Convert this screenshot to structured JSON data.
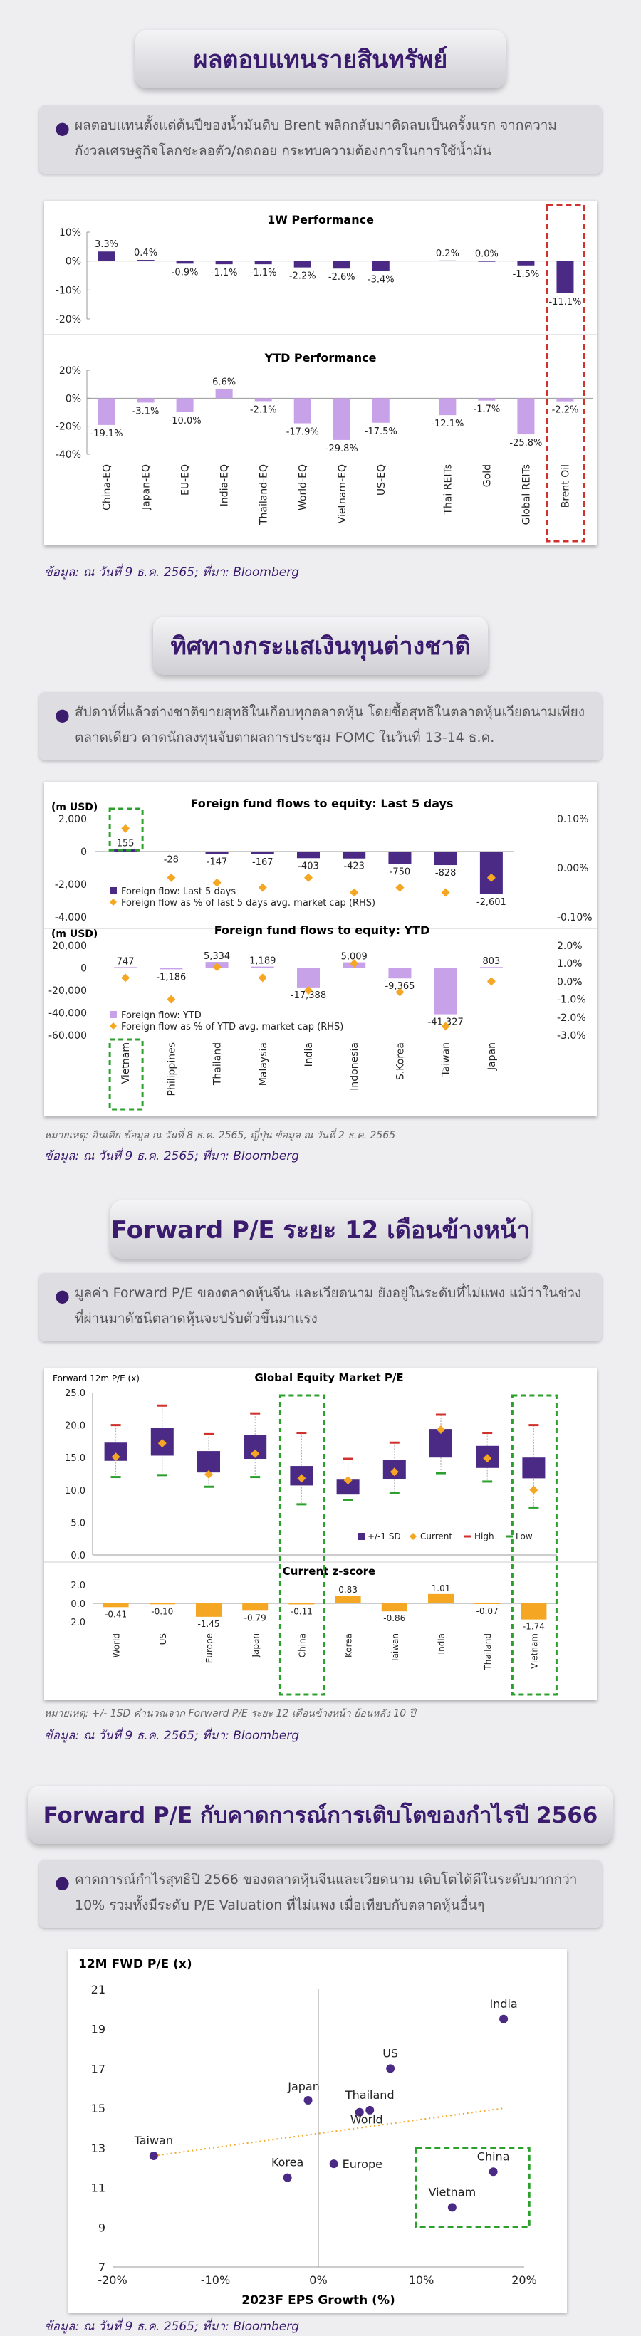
{
  "sections": {
    "s1": {
      "title": "ผลตอบแทนรายสินทรัพย์",
      "bullet": "ผลตอบแทนตั้งแต่ต้นปีของน้ำมันดิบ Brent พลิกกลับมาติดลบเป็นครั้งแรก จากความกังวลเศรษฐกิจโลกชะลอตัว/ถดถอย กระทบความต้องการในการใช้น้ำมัน",
      "source": "ข้อมูล: ณ วันที่ 9 ธ.ค. 2565; ที่มา: Bloomberg"
    },
    "s2": {
      "title": "ทิศทางกระแสเงินทุนต่างชาติ",
      "bullet": "สัปดาห์ที่แล้วต่างชาติขายสุทธิในเกือบทุกตลาดหุ้น โดยซื้อสุทธิในตลาดหุ้นเวียดนามเพียงตลาดเดียว คาดนักลงทุนจับตาผลการประชุม FOMC ในวันที่ 13-14 ธ.ค.",
      "note": "หมายเหตุ: อินเดีย ข้อมูล ณ วันที่ 8 ธ.ค. 2565, ญี่ปุ่น ข้อมูล ณ วันที่ 2 ธ.ค. 2565",
      "source": "ข้อมูล: ณ วันที่ 9 ธ.ค. 2565; ที่มา: Bloomberg"
    },
    "s3": {
      "title": "Forward P/E ระยะ 12 เดือนข้างหน้า",
      "bullet": "มูลค่า Forward P/E ของตลาดหุ้นจีน และเวียดนาม ยังอยู่ในระดับที่ไม่แพง แม้ว่าในช่วงที่ผ่านมาดัชนีตลาดหุ้นจะปรับตัวขึ้นมาแรง",
      "note": "หมายเหตุ: +/- 1SD คำนวณจาก Forward P/E ระยะ 12 เดือนข้างหน้า ย้อนหลัง 10 ปี",
      "source": "ข้อมูล: ณ วันที่ 9 ธ.ค. 2565; ที่มา: Bloomberg"
    },
    "s4": {
      "title": "Forward P/E กับคาดการณ์การเติบโตของกำไรปี 2566",
      "bullet": "คาดการณ์กำไรสุทธิปี 2566 ของตลาดหุ้นจีนและเวียดนาม เติบโตได้ดีในระดับมากกว่า 10% รวมทั้งมีระดับ P/E Valuation ที่ไม่แพง เมื่อเทียบกับตลาดหุ้นอื่นๆ",
      "source": "ข้อมูล: ณ วันที่ 9 ธ.ค. 2565; ที่มา: Bloomberg"
    }
  },
  "colors": {
    "purple": "#4b2a85",
    "lavender": "#c8a2e8",
    "orange": "#f5a623",
    "red": "#d0312d",
    "green": "#2ca02c"
  },
  "chart_data": [
    {
      "type": "bar",
      "title": "1W Performance",
      "categories": [
        "China-EQ",
        "Japan-EQ",
        "EU-EQ",
        "India-EQ",
        "Thailand-EQ",
        "World-EQ",
        "Vietnam-EQ",
        "US-EQ",
        "Thai REITs",
        "Gold",
        "Global REITs",
        "Brent Oil"
      ],
      "values": [
        3.3,
        0.4,
        -0.9,
        -1.1,
        -1.1,
        -2.2,
        -2.6,
        -3.4,
        0.2,
        0.0,
        -1.5,
        -11.1
      ],
      "value_labels": [
        "3.3%",
        "0.4%",
        "-0.9%",
        "-1.1%",
        "-1.1%",
        "-2.2%",
        "-2.6%",
        "-3.4%",
        "0.2%",
        "0.0%",
        "-1.5%",
        "-11.1%"
      ],
      "yticks": [
        "10%",
        "0%",
        "-10%",
        "-20%"
      ],
      "ylim": [
        -20,
        10
      ]
    },
    {
      "type": "bar",
      "title": "YTD Performance",
      "categories": [
        "China-EQ",
        "Japan-EQ",
        "EU-EQ",
        "India-EQ",
        "Thailand-EQ",
        "World-EQ",
        "Vietnam-EQ",
        "US-EQ",
        "Thai REITs",
        "Gold",
        "Global REITs",
        "Brent Oil"
      ],
      "values": [
        -19.1,
        -3.1,
        -10.0,
        6.6,
        -2.1,
        -17.9,
        -29.8,
        -17.5,
        -12.1,
        -1.7,
        -25.8,
        -2.2
      ],
      "value_labels": [
        "-19.1%",
        "-3.1%",
        "-10.0%",
        "6.6%",
        "-2.1%",
        "-17.9%",
        "-29.8%",
        "-17.5%",
        "-12.1%",
        "-1.7%",
        "-25.8%",
        "-2.2%"
      ],
      "yticks": [
        "20%",
        "0%",
        "-20%",
        "-40%"
      ],
      "ylim": [
        -40,
        20
      ]
    },
    {
      "type": "bar",
      "title": "Foreign fund flows to equity: Last 5 days",
      "unit_label": "(m USD)",
      "categories": [
        "Vietnam",
        "Philippines",
        "Thailand",
        "Malaysia",
        "India",
        "Indonesia",
        "S.Korea",
        "Taiwan",
        "Japan"
      ],
      "series": [
        {
          "name": "Foreign flow: Last 5 days",
          "values": [
            155,
            -28,
            -147,
            -167,
            -403,
            -423,
            -750,
            -828,
            -2601
          ]
        },
        {
          "name": "Foreign flow as % of last 5 days avg. market cap (RHS)",
          "axis": "right",
          "values": [
            0.08,
            -0.02,
            -0.03,
            -0.04,
            -0.02,
            -0.05,
            -0.04,
            -0.05,
            -0.02
          ]
        }
      ],
      "value_labels": [
        "155",
        "-28",
        "-147",
        "-167",
        "-403",
        "-423",
        "-750",
        "-828",
        "-2,601"
      ],
      "yticks_left": [
        "2,000",
        "0",
        "-2,000",
        "-4,000"
      ],
      "yticks_right": [
        "0.10%",
        "0.00%",
        "-0.10%"
      ],
      "ylim": [
        -4000,
        2000
      ],
      "ylim_right": [
        -0.1,
        0.1
      ]
    },
    {
      "type": "bar",
      "title": "Foreign fund flows to equity: YTD",
      "unit_label": "(m USD)",
      "categories": [
        "Vietnam",
        "Philippines",
        "Thailand",
        "Malaysia",
        "India",
        "Indonesia",
        "S.Korea",
        "Taiwan",
        "Japan"
      ],
      "series": [
        {
          "name": "Foreign flow: YTD",
          "values": [
            747,
            -1186,
            5334,
            1189,
            -17388,
            5009,
            -9365,
            -41327,
            803
          ]
        },
        {
          "name": "Foreign flow as % of YTD avg. market cap (RHS)",
          "axis": "right",
          "values": [
            0.2,
            -1.0,
            0.8,
            0.2,
            -0.5,
            1.0,
            -0.6,
            -2.5,
            0.0
          ]
        }
      ],
      "value_labels": [
        "747",
        "-1,186",
        "5,334",
        "1,189",
        "-17,388",
        "5,009",
        "-9,365",
        "-41,327",
        "803"
      ],
      "yticks_left": [
        "20,000",
        "0",
        "-20,000",
        "-40,000",
        "-60,000"
      ],
      "yticks_right": [
        "2.0%",
        "1.0%",
        "0.0%",
        "-1.0%",
        "-2.0%",
        "-3.0%"
      ],
      "ylim": [
        -60000,
        20000
      ],
      "ylim_right": [
        -3,
        2
      ]
    },
    {
      "type": "box",
      "title": "Global Equity Market P/E",
      "unit_label": "Forward 12m P/E (x)",
      "categories": [
        "World",
        "US",
        "Europe",
        "Japan",
        "China",
        "Korea",
        "Taiwan",
        "India",
        "Thailand",
        "Vietnam"
      ],
      "sd_low": [
        14.5,
        15.3,
        12.7,
        14.8,
        10.7,
        9.3,
        11.7,
        15.0,
        13.4,
        11.8
      ],
      "sd_high": [
        17.3,
        19.6,
        16.0,
        18.5,
        13.7,
        11.6,
        14.6,
        19.4,
        16.8,
        15.0
      ],
      "current": [
        15.1,
        17.2,
        12.4,
        15.6,
        11.8,
        11.5,
        12.8,
        19.3,
        14.9,
        10.0
      ],
      "high": [
        20.0,
        23.0,
        18.6,
        21.8,
        18.8,
        14.8,
        17.3,
        21.6,
        18.8,
        20.0
      ],
      "low": [
        12.0,
        12.3,
        10.5,
        12.0,
        7.8,
        8.5,
        9.5,
        12.6,
        11.3,
        7.3
      ],
      "legend": [
        "+/-1 SD",
        "Current",
        "High",
        "Low"
      ],
      "yticks": [
        "25.0",
        "20.0",
        "15.0",
        "10.0",
        "5.0",
        "0.0"
      ],
      "ylim": [
        0,
        25
      ]
    },
    {
      "type": "bar",
      "title": "Current z-score",
      "categories": [
        "World",
        "US",
        "Europe",
        "Japan",
        "China",
        "Korea",
        "Taiwan",
        "India",
        "Thailand",
        "Vietnam"
      ],
      "values": [
        -0.41,
        -0.1,
        -1.45,
        -0.79,
        -0.11,
        0.83,
        -0.86,
        1.01,
        -0.07,
        -1.74
      ],
      "value_labels": [
        "-0.41",
        "-0.10",
        "-1.45",
        "-0.79",
        "-0.11",
        "0.83",
        "-0.86",
        "1.01",
        "-0.07",
        "-1.74"
      ],
      "yticks": [
        "2.0",
        "0.0",
        "-2.0"
      ],
      "ylim": [
        -2,
        2
      ]
    },
    {
      "type": "scatter",
      "ylabel": "12M FWD P/E (x)",
      "xlabel": "2023F EPS Growth (%)",
      "points": [
        {
          "label": "India",
          "x": 18,
          "y": 19.5
        },
        {
          "label": "US",
          "x": 7,
          "y": 17.0
        },
        {
          "label": "Japan",
          "x": -1,
          "y": 15.4
        },
        {
          "label": "Thailand",
          "x": 5,
          "y": 14.9
        },
        {
          "label": "World",
          "x": 4,
          "y": 14.8
        },
        {
          "label": "Taiwan",
          "x": -16,
          "y": 12.6
        },
        {
          "label": "Korea",
          "x": -3,
          "y": 11.5
        },
        {
          "label": "Europe",
          "x": 1.5,
          "y": 12.2
        },
        {
          "label": "China",
          "x": 17,
          "y": 11.8
        },
        {
          "label": "Vietnam",
          "x": 13,
          "y": 10.0
        }
      ],
      "trend": {
        "x": [
          -16,
          18
        ],
        "y": [
          12.6,
          15.0
        ]
      },
      "xticks": [
        "-20%",
        "-10%",
        "0%",
        "10%",
        "20%"
      ],
      "yticks": [
        "21",
        "19",
        "17",
        "15",
        "13",
        "11",
        "9",
        "7"
      ],
      "xlim": [
        -20,
        20
      ],
      "ylim": [
        7,
        21
      ]
    }
  ]
}
